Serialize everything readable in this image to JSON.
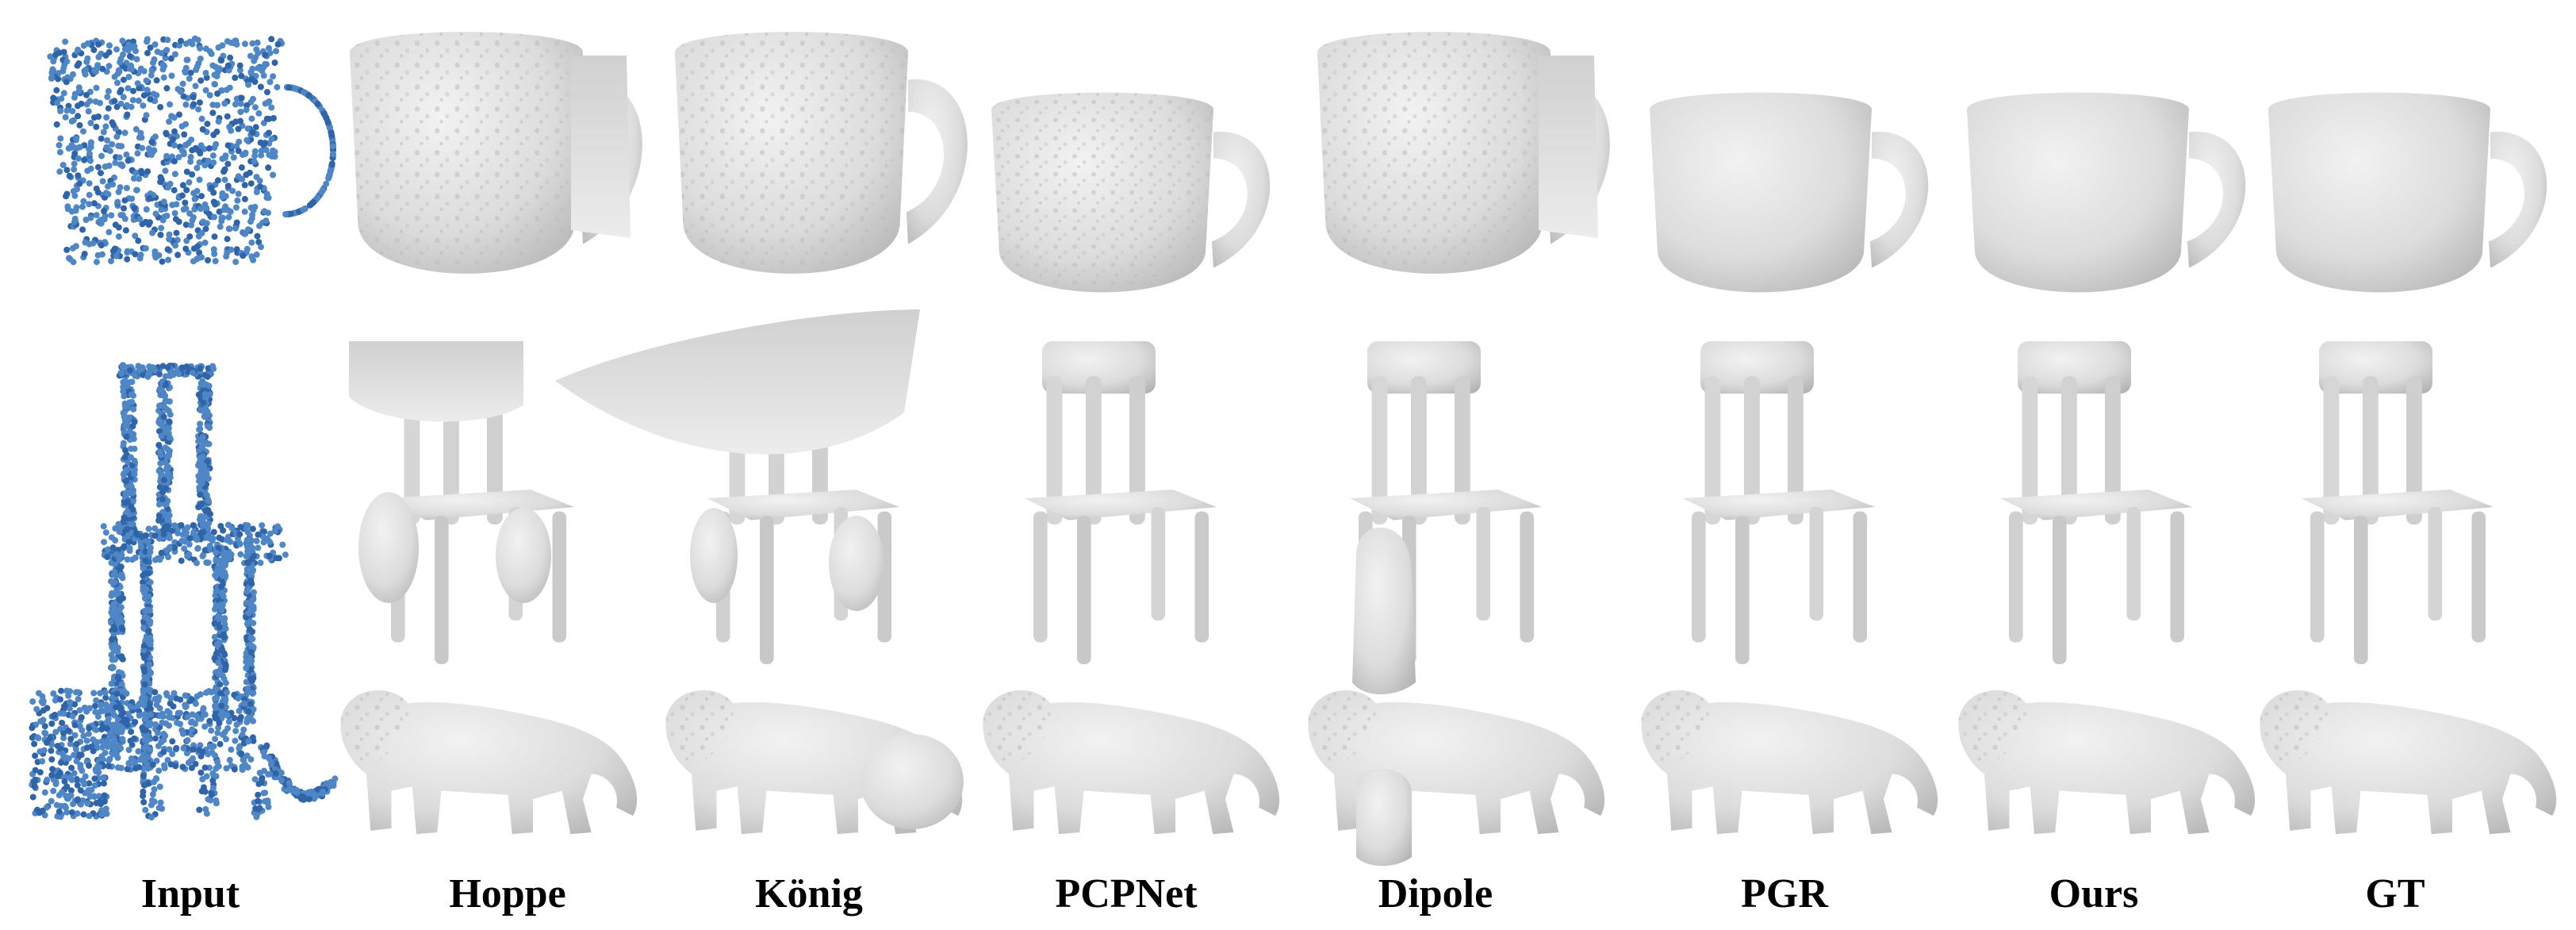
{
  "figure": {
    "columns": [
      "Input",
      "Hoppe",
      "König",
      "PCPNet",
      "Dipole",
      "PGR",
      "Ours",
      "GT"
    ],
    "rows": [
      "cup",
      "chair",
      "lion"
    ],
    "colors": {
      "point_cloud": "#4f86c6",
      "point_cloud_dark": "#2f64a8",
      "mesh_light": "#eeeeee",
      "mesh_mid": "#d2d2d2",
      "mesh_dark": "#a9a9a9",
      "label": "#000000"
    }
  }
}
